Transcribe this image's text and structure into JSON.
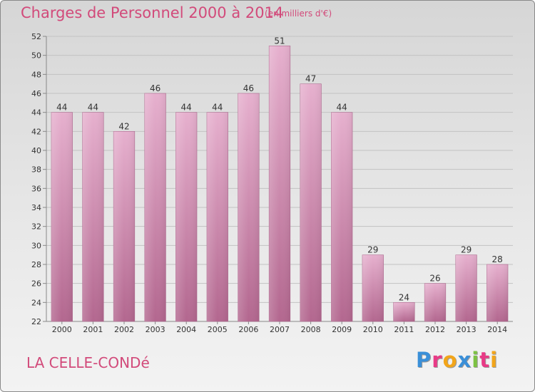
{
  "chart_data": {
    "type": "bar",
    "title": "Charges de Personnel 2000 à 2014",
    "subtitle": "(en milliers d'€)",
    "categories": [
      "2000",
      "2001",
      "2002",
      "2003",
      "2004",
      "2005",
      "2006",
      "2007",
      "2008",
      "2009",
      "2010",
      "2011",
      "2012",
      "2013",
      "2014"
    ],
    "values": [
      44,
      44,
      42,
      46,
      44,
      44,
      46,
      51,
      47,
      44,
      29,
      24,
      26,
      29,
      28
    ],
    "ylim": [
      22,
      52
    ],
    "yticks": [
      22,
      24,
      26,
      28,
      30,
      32,
      34,
      36,
      38,
      40,
      42,
      44,
      46,
      48,
      50,
      52
    ],
    "grid": true,
    "bar_color": "#d991b7"
  },
  "location": "LA CELLE-CONDé",
  "logo": {
    "text": "Proxiti",
    "letters": [
      {
        "char": "P",
        "color": "#3a8fd8"
      },
      {
        "char": "r",
        "color": "#e83a86"
      },
      {
        "char": "o",
        "color": "#f2a51a"
      },
      {
        "char": "x",
        "color": "#3a8fd8"
      },
      {
        "char": "i",
        "color": "#7cc242"
      },
      {
        "char": "t",
        "color": "#e83a86"
      },
      {
        "char": "i",
        "color": "#f2a51a"
      }
    ]
  }
}
